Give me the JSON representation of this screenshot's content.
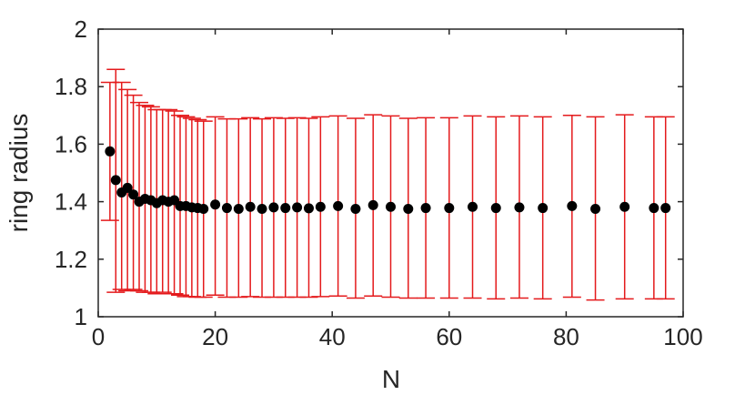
{
  "chart_data": {
    "type": "scatter",
    "title": "",
    "xlabel": "N",
    "ylabel": "ring radius",
    "xlim": [
      0,
      100
    ],
    "ylim": [
      1,
      2
    ],
    "xticks": [
      0,
      20,
      40,
      60,
      80,
      100
    ],
    "yticks": [
      1,
      1.2,
      1.4,
      1.6,
      1.8,
      2
    ],
    "xtick_labels": [
      "0",
      "20",
      "40",
      "60",
      "80",
      "100"
    ],
    "ytick_labels": [
      "1",
      "1.2",
      "1.4",
      "1.6",
      "1.8",
      "2"
    ],
    "grid": false,
    "legend": "none",
    "colors": {
      "marker": "#000000",
      "errorbar": "#e41a1c",
      "axis": "#262626"
    },
    "series": [
      {
        "marker": "filled-circle",
        "errorbars": true,
        "points": [
          {
            "x": 2,
            "y": 1.575,
            "low": 1.335,
            "high": 1.815
          },
          {
            "x": 3,
            "y": 1.475,
            "low": 1.085,
            "high": 1.86
          },
          {
            "x": 4,
            "y": 1.432,
            "low": 1.095,
            "high": 1.815
          },
          {
            "x": 5,
            "y": 1.448,
            "low": 1.09,
            "high": 1.79
          },
          {
            "x": 6,
            "y": 1.425,
            "low": 1.095,
            "high": 1.77
          },
          {
            "x": 7,
            "y": 1.4,
            "low": 1.09,
            "high": 1.745
          },
          {
            "x": 8,
            "y": 1.41,
            "low": 1.085,
            "high": 1.735
          },
          {
            "x": 9,
            "y": 1.405,
            "low": 1.085,
            "high": 1.73
          },
          {
            "x": 10,
            "y": 1.395,
            "low": 1.08,
            "high": 1.72
          },
          {
            "x": 11,
            "y": 1.405,
            "low": 1.085,
            "high": 1.72
          },
          {
            "x": 12,
            "y": 1.4,
            "low": 1.08,
            "high": 1.72
          },
          {
            "x": 13,
            "y": 1.405,
            "low": 1.08,
            "high": 1.715
          },
          {
            "x": 14,
            "y": 1.385,
            "low": 1.075,
            "high": 1.7
          },
          {
            "x": 15,
            "y": 1.385,
            "low": 1.07,
            "high": 1.695
          },
          {
            "x": 16,
            "y": 1.38,
            "low": 1.07,
            "high": 1.69
          },
          {
            "x": 17,
            "y": 1.378,
            "low": 1.068,
            "high": 1.685
          },
          {
            "x": 18,
            "y": 1.375,
            "low": 1.068,
            "high": 1.68
          },
          {
            "x": 20,
            "y": 1.39,
            "low": 1.075,
            "high": 1.695
          },
          {
            "x": 22,
            "y": 1.378,
            "low": 1.068,
            "high": 1.688
          },
          {
            "x": 24,
            "y": 1.375,
            "low": 1.068,
            "high": 1.688
          },
          {
            "x": 26,
            "y": 1.382,
            "low": 1.07,
            "high": 1.692
          },
          {
            "x": 28,
            "y": 1.375,
            "low": 1.068,
            "high": 1.688
          },
          {
            "x": 30,
            "y": 1.38,
            "low": 1.068,
            "high": 1.692
          },
          {
            "x": 32,
            "y": 1.378,
            "low": 1.068,
            "high": 1.69
          },
          {
            "x": 34,
            "y": 1.38,
            "low": 1.068,
            "high": 1.692
          },
          {
            "x": 36,
            "y": 1.377,
            "low": 1.068,
            "high": 1.69
          },
          {
            "x": 38,
            "y": 1.382,
            "low": 1.07,
            "high": 1.695
          },
          {
            "x": 41,
            "y": 1.385,
            "low": 1.072,
            "high": 1.698
          },
          {
            "x": 44,
            "y": 1.375,
            "low": 1.065,
            "high": 1.69
          },
          {
            "x": 47,
            "y": 1.388,
            "low": 1.072,
            "high": 1.702
          },
          {
            "x": 50,
            "y": 1.382,
            "low": 1.068,
            "high": 1.698
          },
          {
            "x": 53,
            "y": 1.375,
            "low": 1.065,
            "high": 1.69
          },
          {
            "x": 56,
            "y": 1.378,
            "low": 1.065,
            "high": 1.692
          },
          {
            "x": 60,
            "y": 1.378,
            "low": 1.065,
            "high": 1.692
          },
          {
            "x": 64,
            "y": 1.382,
            "low": 1.065,
            "high": 1.698
          },
          {
            "x": 68,
            "y": 1.378,
            "low": 1.062,
            "high": 1.695
          },
          {
            "x": 72,
            "y": 1.38,
            "low": 1.065,
            "high": 1.698
          },
          {
            "x": 76,
            "y": 1.378,
            "low": 1.062,
            "high": 1.695
          },
          {
            "x": 81,
            "y": 1.385,
            "low": 1.068,
            "high": 1.7
          },
          {
            "x": 85,
            "y": 1.375,
            "low": 1.058,
            "high": 1.695
          },
          {
            "x": 90,
            "y": 1.382,
            "low": 1.062,
            "high": 1.702
          },
          {
            "x": 95,
            "y": 1.378,
            "low": 1.062,
            "high": 1.695
          },
          {
            "x": 97,
            "y": 1.378,
            "low": 1.062,
            "high": 1.695
          }
        ]
      }
    ]
  }
}
